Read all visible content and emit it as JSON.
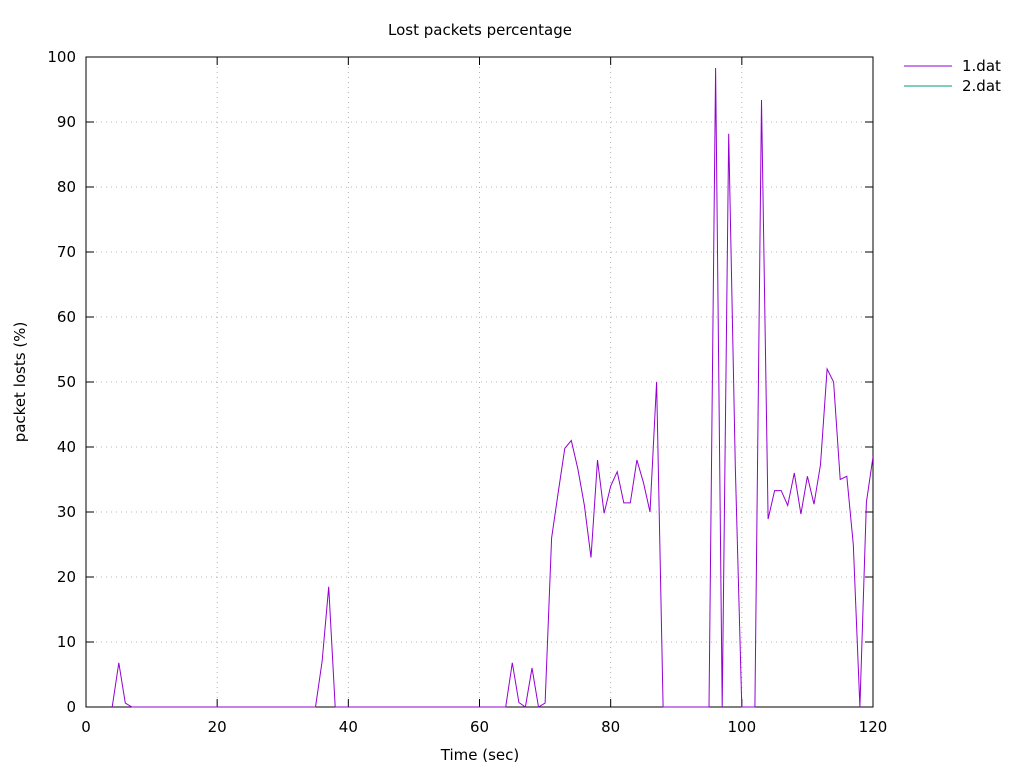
{
  "chart_data": {
    "type": "line",
    "title": "Lost packets percentage",
    "xlabel": "Time (sec)",
    "ylabel": "packet losts (%)",
    "xlim": [
      0,
      120
    ],
    "ylim": [
      0,
      100
    ],
    "xticks": [
      0,
      20,
      40,
      60,
      80,
      100,
      120
    ],
    "yticks": [
      0,
      10,
      20,
      30,
      40,
      50,
      60,
      70,
      80,
      90,
      100
    ],
    "grid": true,
    "legend_position": "top-right, outside plot",
    "series": [
      {
        "name": "1.dat",
        "color": "#9400d3",
        "x": [
          4,
          5,
          6,
          7,
          8,
          9,
          10,
          15,
          20,
          25,
          30,
          34,
          35,
          36,
          37,
          38,
          39,
          45,
          50,
          55,
          60,
          63,
          64,
          65,
          66,
          67,
          68,
          69,
          70,
          71,
          72,
          73,
          74,
          75,
          76,
          77,
          78,
          79,
          80,
          81,
          82,
          83,
          84,
          85,
          86,
          87,
          88,
          89,
          90,
          91,
          92,
          93,
          94,
          95,
          96,
          97,
          98,
          99,
          100,
          101,
          102,
          103,
          104,
          105,
          106,
          107,
          108,
          109,
          110,
          111,
          112,
          113,
          114,
          115,
          116,
          117,
          118,
          119,
          120
        ],
        "values": [
          0,
          6.8,
          0.6,
          0,
          0,
          0,
          0,
          0,
          0,
          0,
          0,
          0,
          0,
          7,
          18.5,
          0,
          0,
          0,
          0,
          0,
          0,
          0,
          0,
          6.8,
          0.7,
          0,
          6,
          0,
          0.6,
          26,
          33,
          39.8,
          41,
          36.6,
          31,
          23,
          38,
          29.8,
          34,
          36.2,
          31.4,
          31.4,
          38,
          34.5,
          30,
          50,
          0,
          0,
          0,
          0,
          0,
          0,
          0,
          0,
          98.3,
          0,
          88.2,
          37,
          0,
          0,
          0,
          93.4,
          28.9,
          33.3,
          33.3,
          31,
          36,
          29.7,
          35.5,
          31.2,
          37.3,
          52,
          50,
          35,
          35.5,
          25,
          0,
          31.5,
          38.5
        ]
      },
      {
        "name": "2.dat",
        "color": "#009e73",
        "x": [],
        "values": []
      }
    ]
  }
}
